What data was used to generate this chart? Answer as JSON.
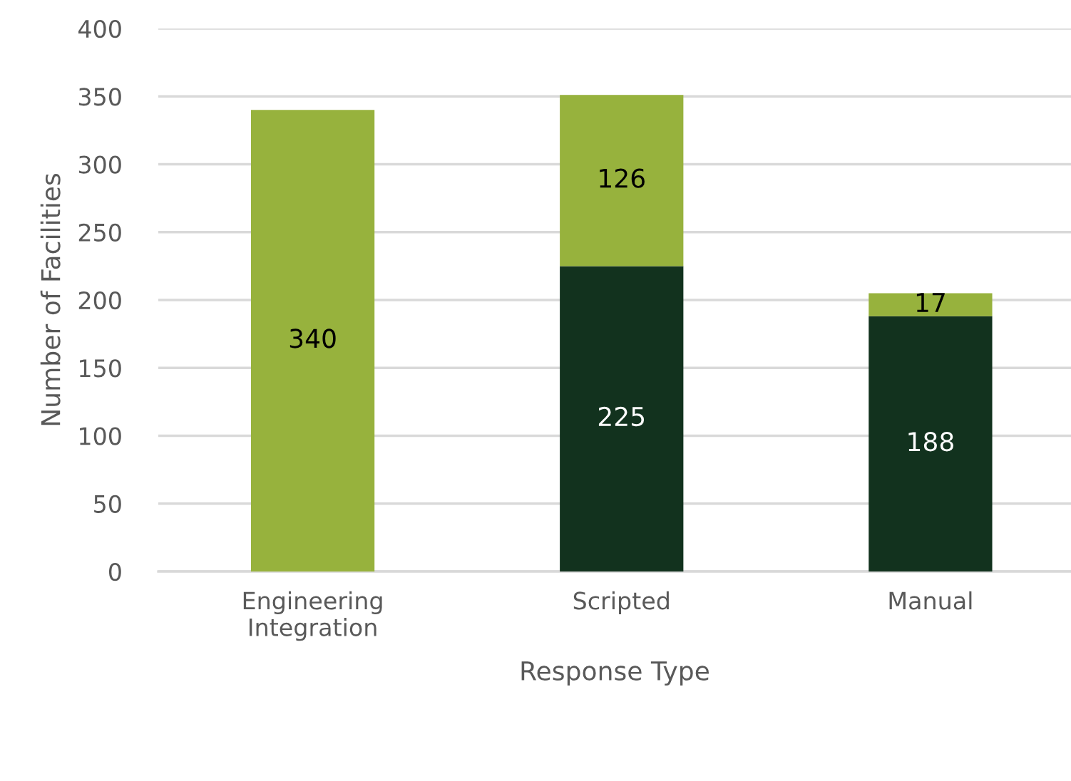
{
  "chart_data": {
    "type": "bar",
    "stacked": true,
    "xlabel": "Response Type",
    "ylabel": "Number of Facilities",
    "categories": [
      "Engineering\nIntegration",
      "Scripted",
      "Manual"
    ],
    "series": [
      {
        "color": "#12321e",
        "values": [
          null,
          225,
          188
        ]
      },
      {
        "color": "#97b23d",
        "values": [
          340,
          126,
          17
        ]
      }
    ],
    "ylim": [
      0,
      400
    ],
    "yticks": [
      0,
      50,
      100,
      150,
      200,
      250,
      300,
      350,
      400
    ],
    "grid": "y",
    "data_labels": true
  }
}
